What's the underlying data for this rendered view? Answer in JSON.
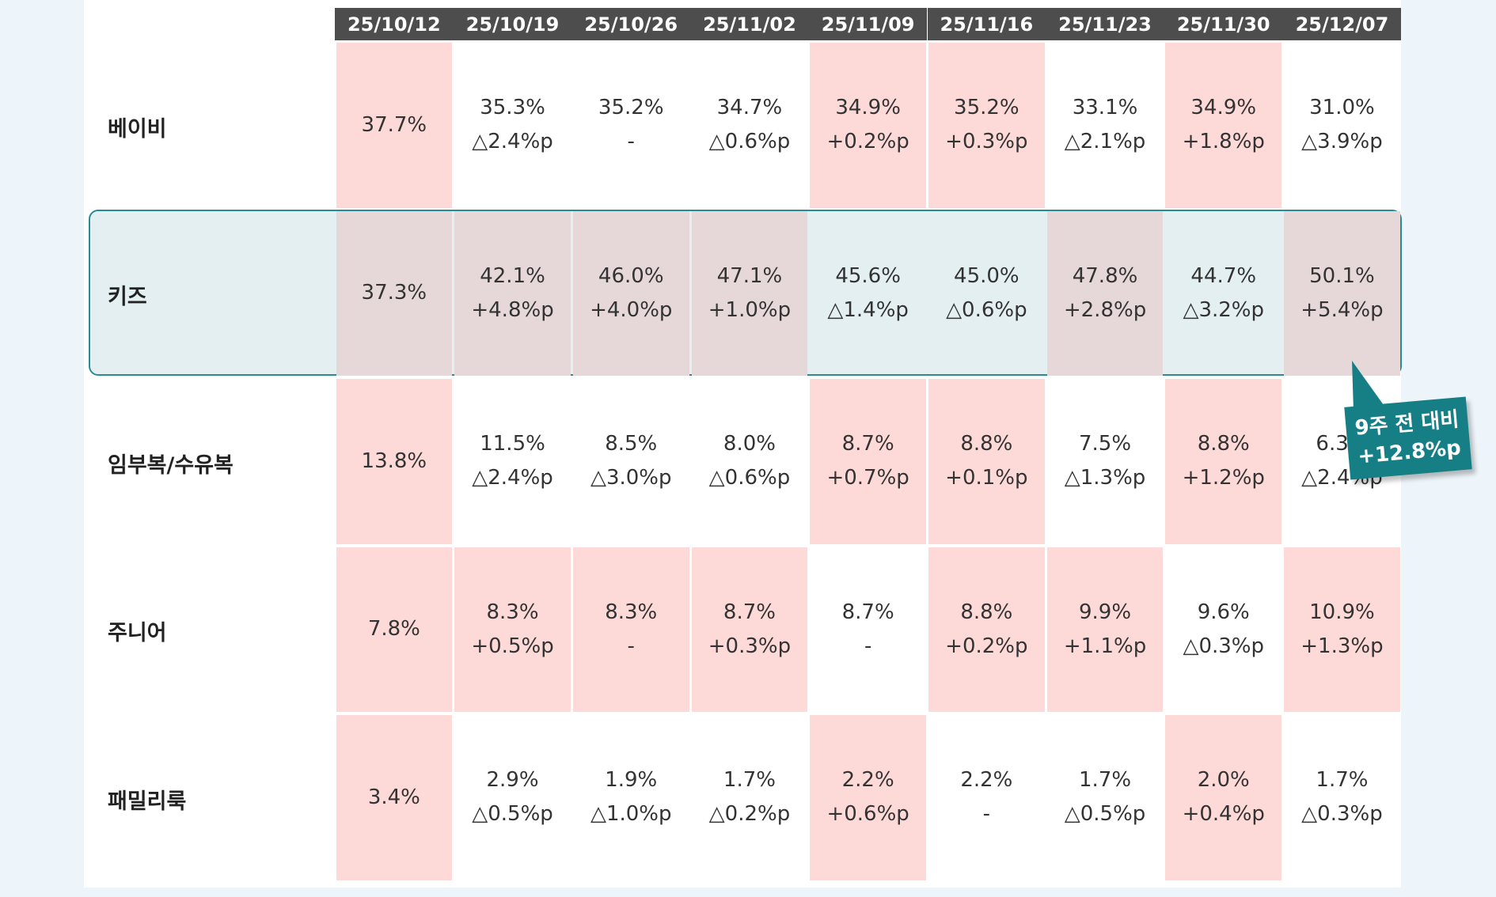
{
  "table": {
    "dates": [
      "25/10/12",
      "25/10/19",
      "25/10/26",
      "25/11/02",
      "25/11/09",
      "25/11/16",
      "25/11/23",
      "25/11/30",
      "25/12/07"
    ],
    "rows": [
      {
        "label": "베이비",
        "cells": [
          {
            "value": "37.7%",
            "highlight": true
          },
          {
            "value": "35.3%",
            "change": "△2.4%p",
            "highlight": false
          },
          {
            "value": "35.2%",
            "change": "-",
            "highlight": false
          },
          {
            "value": "34.7%",
            "change": "△0.6%p",
            "highlight": false
          },
          {
            "value": "34.9%",
            "change": "+0.2%p",
            "highlight": true
          },
          {
            "value": "35.2%",
            "change": "+0.3%p",
            "highlight": true
          },
          {
            "value": "33.1%",
            "change": "△2.1%p",
            "highlight": false
          },
          {
            "value": "34.9%",
            "change": "+1.8%p",
            "highlight": true
          },
          {
            "value": "31.0%",
            "change": "△3.9%p",
            "highlight": false
          }
        ]
      },
      {
        "label": "키즈",
        "focus": true,
        "cells": [
          {
            "value": "37.3%",
            "highlight": true
          },
          {
            "value": "42.1%",
            "change": "+4.8%p",
            "highlight": true
          },
          {
            "value": "46.0%",
            "change": "+4.0%p",
            "highlight": true
          },
          {
            "value": "47.1%",
            "change": "+1.0%p",
            "highlight": true
          },
          {
            "value": "45.6%",
            "change": "△1.4%p",
            "highlight": false
          },
          {
            "value": "45.0%",
            "change": "△0.6%p",
            "highlight": false
          },
          {
            "value": "47.8%",
            "change": "+2.8%p",
            "highlight": true
          },
          {
            "value": "44.7%",
            "change": "△3.2%p",
            "highlight": false
          },
          {
            "value": "50.1%",
            "change": "+5.4%p",
            "highlight": true
          }
        ]
      },
      {
        "label": "임부복/수유복",
        "cells": [
          {
            "value": "13.8%",
            "highlight": true
          },
          {
            "value": "11.5%",
            "change": "△2.4%p",
            "highlight": false
          },
          {
            "value": "8.5%",
            "change": "△3.0%p",
            "highlight": false
          },
          {
            "value": "8.0%",
            "change": "△0.6%p",
            "highlight": false
          },
          {
            "value": "8.7%",
            "change": "+0.7%p",
            "highlight": true
          },
          {
            "value": "8.8%",
            "change": "+0.1%p",
            "highlight": true
          },
          {
            "value": "7.5%",
            "change": "△1.3%p",
            "highlight": false
          },
          {
            "value": "8.8%",
            "change": "+1.2%p",
            "highlight": true
          },
          {
            "value": "6.3%",
            "change": "△2.4%p",
            "highlight": false
          }
        ]
      },
      {
        "label": "주니어",
        "cells": [
          {
            "value": "7.8%",
            "highlight": true
          },
          {
            "value": "8.3%",
            "change": "+0.5%p",
            "highlight": true
          },
          {
            "value": "8.3%",
            "change": "-",
            "highlight": true
          },
          {
            "value": "8.7%",
            "change": "+0.3%p",
            "highlight": true
          },
          {
            "value": "8.7%",
            "change": "-",
            "highlight": false
          },
          {
            "value": "8.8%",
            "change": "+0.2%p",
            "highlight": true
          },
          {
            "value": "9.9%",
            "change": "+1.1%p",
            "highlight": true
          },
          {
            "value": "9.6%",
            "change": "△0.3%p",
            "highlight": false
          },
          {
            "value": "10.9%",
            "change": "+1.3%p",
            "highlight": true
          }
        ]
      },
      {
        "label": "패밀리룩",
        "cells": [
          {
            "value": "3.4%",
            "highlight": true
          },
          {
            "value": "2.9%",
            "change": "△0.5%p",
            "highlight": false
          },
          {
            "value": "1.9%",
            "change": "△1.0%p",
            "highlight": false
          },
          {
            "value": "1.7%",
            "change": "△0.2%p",
            "highlight": false
          },
          {
            "value": "2.2%",
            "change": "+0.6%p",
            "highlight": true
          },
          {
            "value": "2.2%",
            "change": "-",
            "highlight": false
          },
          {
            "value": "1.7%",
            "change": "△0.5%p",
            "highlight": false
          },
          {
            "value": "2.0%",
            "change": "+0.4%p",
            "highlight": true
          },
          {
            "value": "1.7%",
            "change": "△0.3%p",
            "highlight": false
          }
        ]
      }
    ]
  },
  "callout": {
    "line1": "9주 전 대비",
    "line2": "+12.8%p"
  }
}
